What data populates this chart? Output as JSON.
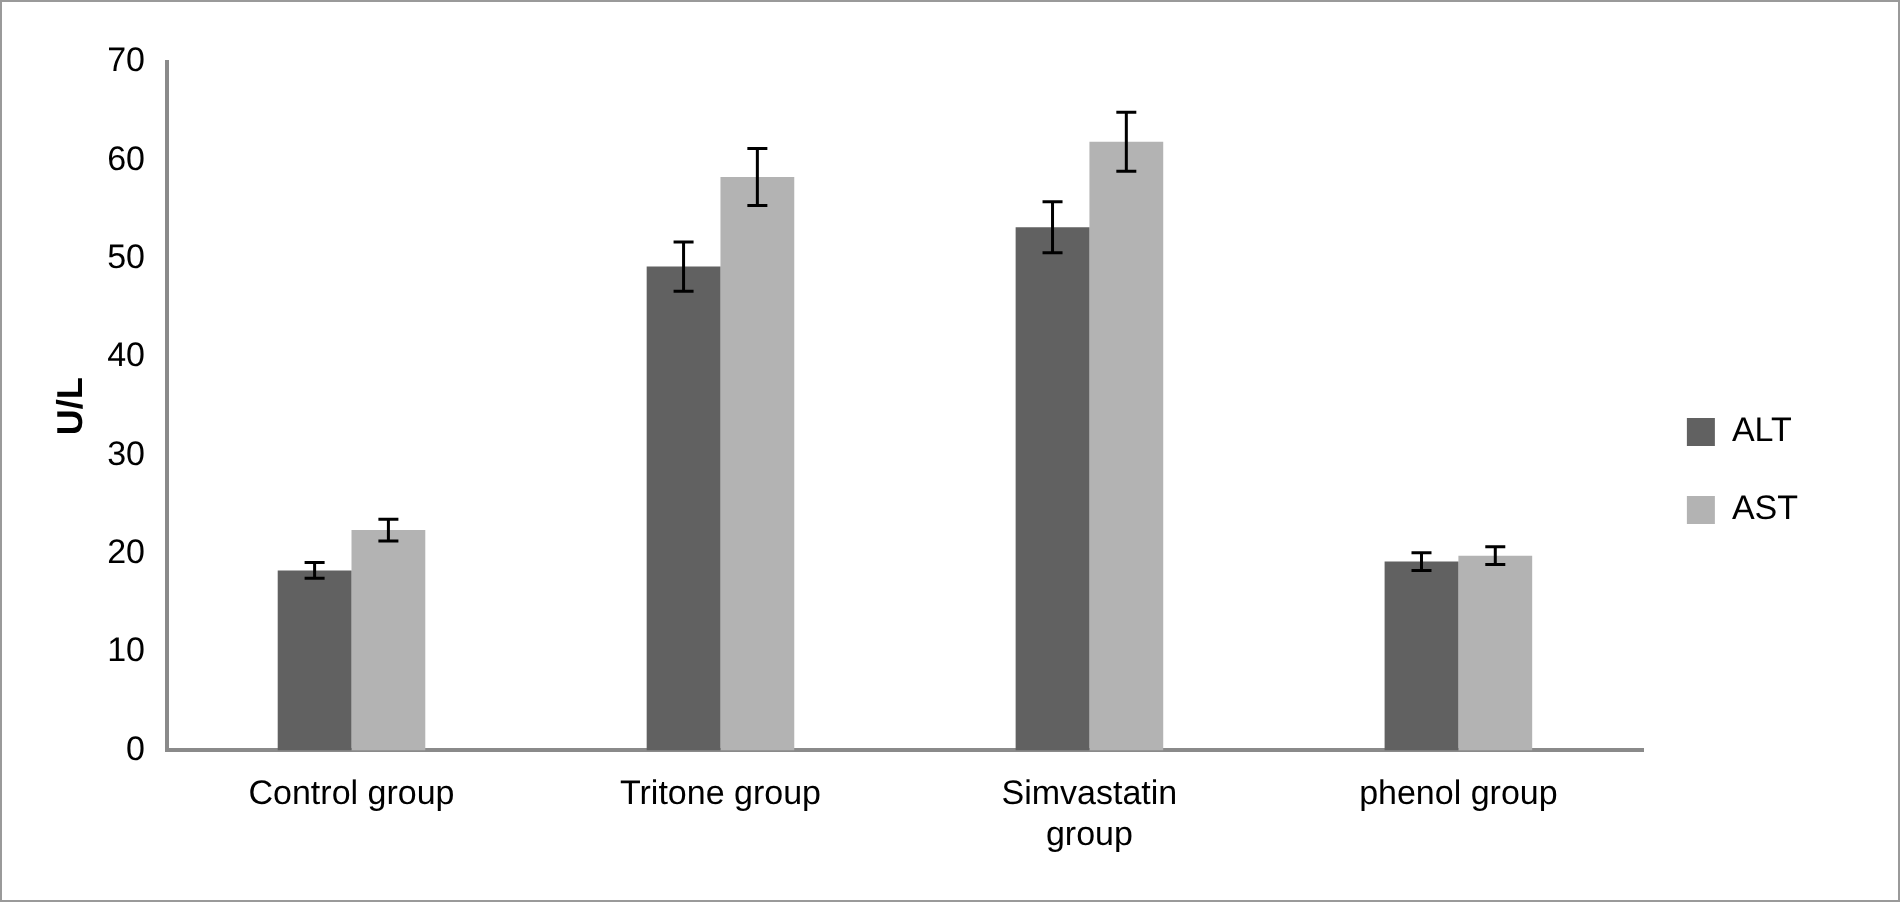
{
  "chart_data": {
    "type": "bar",
    "ylabel": "U/L",
    "categories": [
      "Control group",
      "Tritone group",
      "Simvastatin group",
      "phenol group"
    ],
    "series": [
      {
        "name": "ALT",
        "color": "#616161",
        "values": [
          18.3,
          49.2,
          53.2,
          19.2
        ],
        "errors": [
          0.8,
          2.5,
          2.6,
          0.9
        ]
      },
      {
        "name": "AST",
        "color": "#b3b3b3",
        "values": [
          22.4,
          58.3,
          61.9,
          19.8
        ],
        "errors": [
          1.1,
          2.9,
          3.0,
          0.9
        ]
      }
    ],
    "ylim": [
      0,
      70
    ],
    "yticks": [
      0,
      10,
      20,
      30,
      40,
      50,
      60,
      70
    ],
    "grid": false,
    "legend": "right"
  }
}
